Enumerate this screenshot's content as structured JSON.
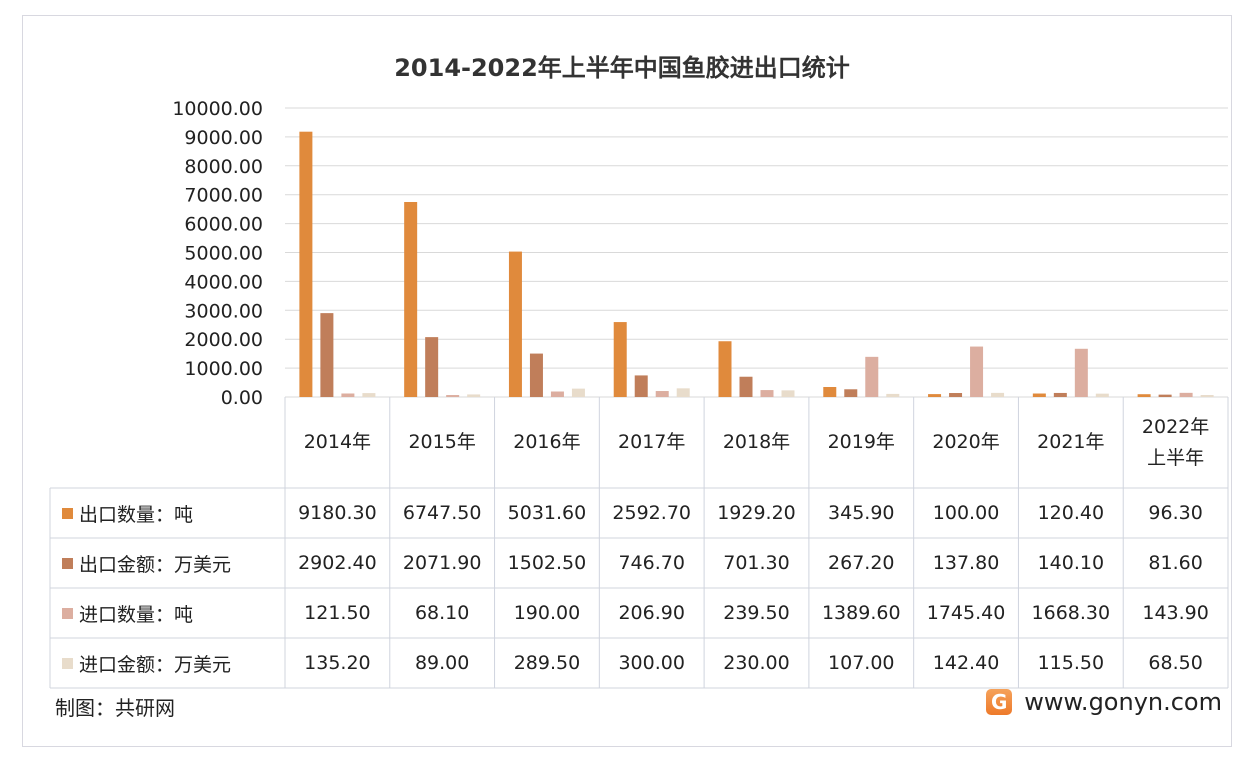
{
  "chart_data": {
    "type": "bar",
    "title": "2014-2022年上半年中国鱼胶进出口统计",
    "categories": [
      "2014年",
      "2015年",
      "2016年",
      "2017年",
      "2018年",
      "2019年",
      "2020年",
      "2021年",
      "2022年上半年"
    ],
    "category_lines": [
      [
        "2014年"
      ],
      [
        "2015年"
      ],
      [
        "2016年"
      ],
      [
        "2017年"
      ],
      [
        "2018年"
      ],
      [
        "2019年"
      ],
      [
        "2020年"
      ],
      [
        "2021年"
      ],
      [
        "2022年",
        "上半年"
      ]
    ],
    "ylim": [
      0,
      10000
    ],
    "yticks": [
      "0.00",
      "1000.00",
      "2000.00",
      "3000.00",
      "4000.00",
      "5000.00",
      "6000.00",
      "7000.00",
      "8000.00",
      "9000.00",
      "10000.00"
    ],
    "grid": true,
    "legend": "data-table",
    "series": [
      {
        "name": "出口数量：吨",
        "color": "#e08a3c",
        "values": [
          9180.3,
          6747.5,
          5031.6,
          2592.7,
          1929.2,
          345.9,
          100.0,
          120.4,
          96.3
        ],
        "labels": [
          "9180.30",
          "6747.50",
          "5031.60",
          "2592.70",
          "1929.20",
          "345.90",
          "100.00",
          "120.40",
          "96.30"
        ]
      },
      {
        "name": "出口金额：万美元",
        "color": "#c07e5a",
        "values": [
          2902.4,
          2071.9,
          1502.5,
          746.7,
          701.3,
          267.2,
          137.8,
          140.1,
          81.6
        ],
        "labels": [
          "2902.40",
          "2071.90",
          "1502.50",
          "746.70",
          "701.30",
          "267.20",
          "137.80",
          "140.10",
          "81.60"
        ]
      },
      {
        "name": "进口数量：吨",
        "color": "#dcaea0",
        "values": [
          121.5,
          68.1,
          190.0,
          206.9,
          239.5,
          1389.6,
          1745.4,
          1668.3,
          143.9
        ],
        "labels": [
          "121.50",
          "68.10",
          "190.00",
          "206.90",
          "239.50",
          "1389.60",
          "1745.40",
          "1668.30",
          "143.90"
        ]
      },
      {
        "name": "进口金额：万美元",
        "color": "#e8dccb",
        "values": [
          135.2,
          89.0,
          289.5,
          300.0,
          230.0,
          107.0,
          142.4,
          115.5,
          68.5
        ],
        "labels": [
          "135.20",
          "89.00",
          "289.50",
          "300.00",
          "230.00",
          "107.00",
          "142.40",
          "115.50",
          "68.50"
        ]
      }
    ]
  },
  "footer": {
    "source": "制图：共研网",
    "site": "www.gonyn.com",
    "logo_letter": "G"
  }
}
